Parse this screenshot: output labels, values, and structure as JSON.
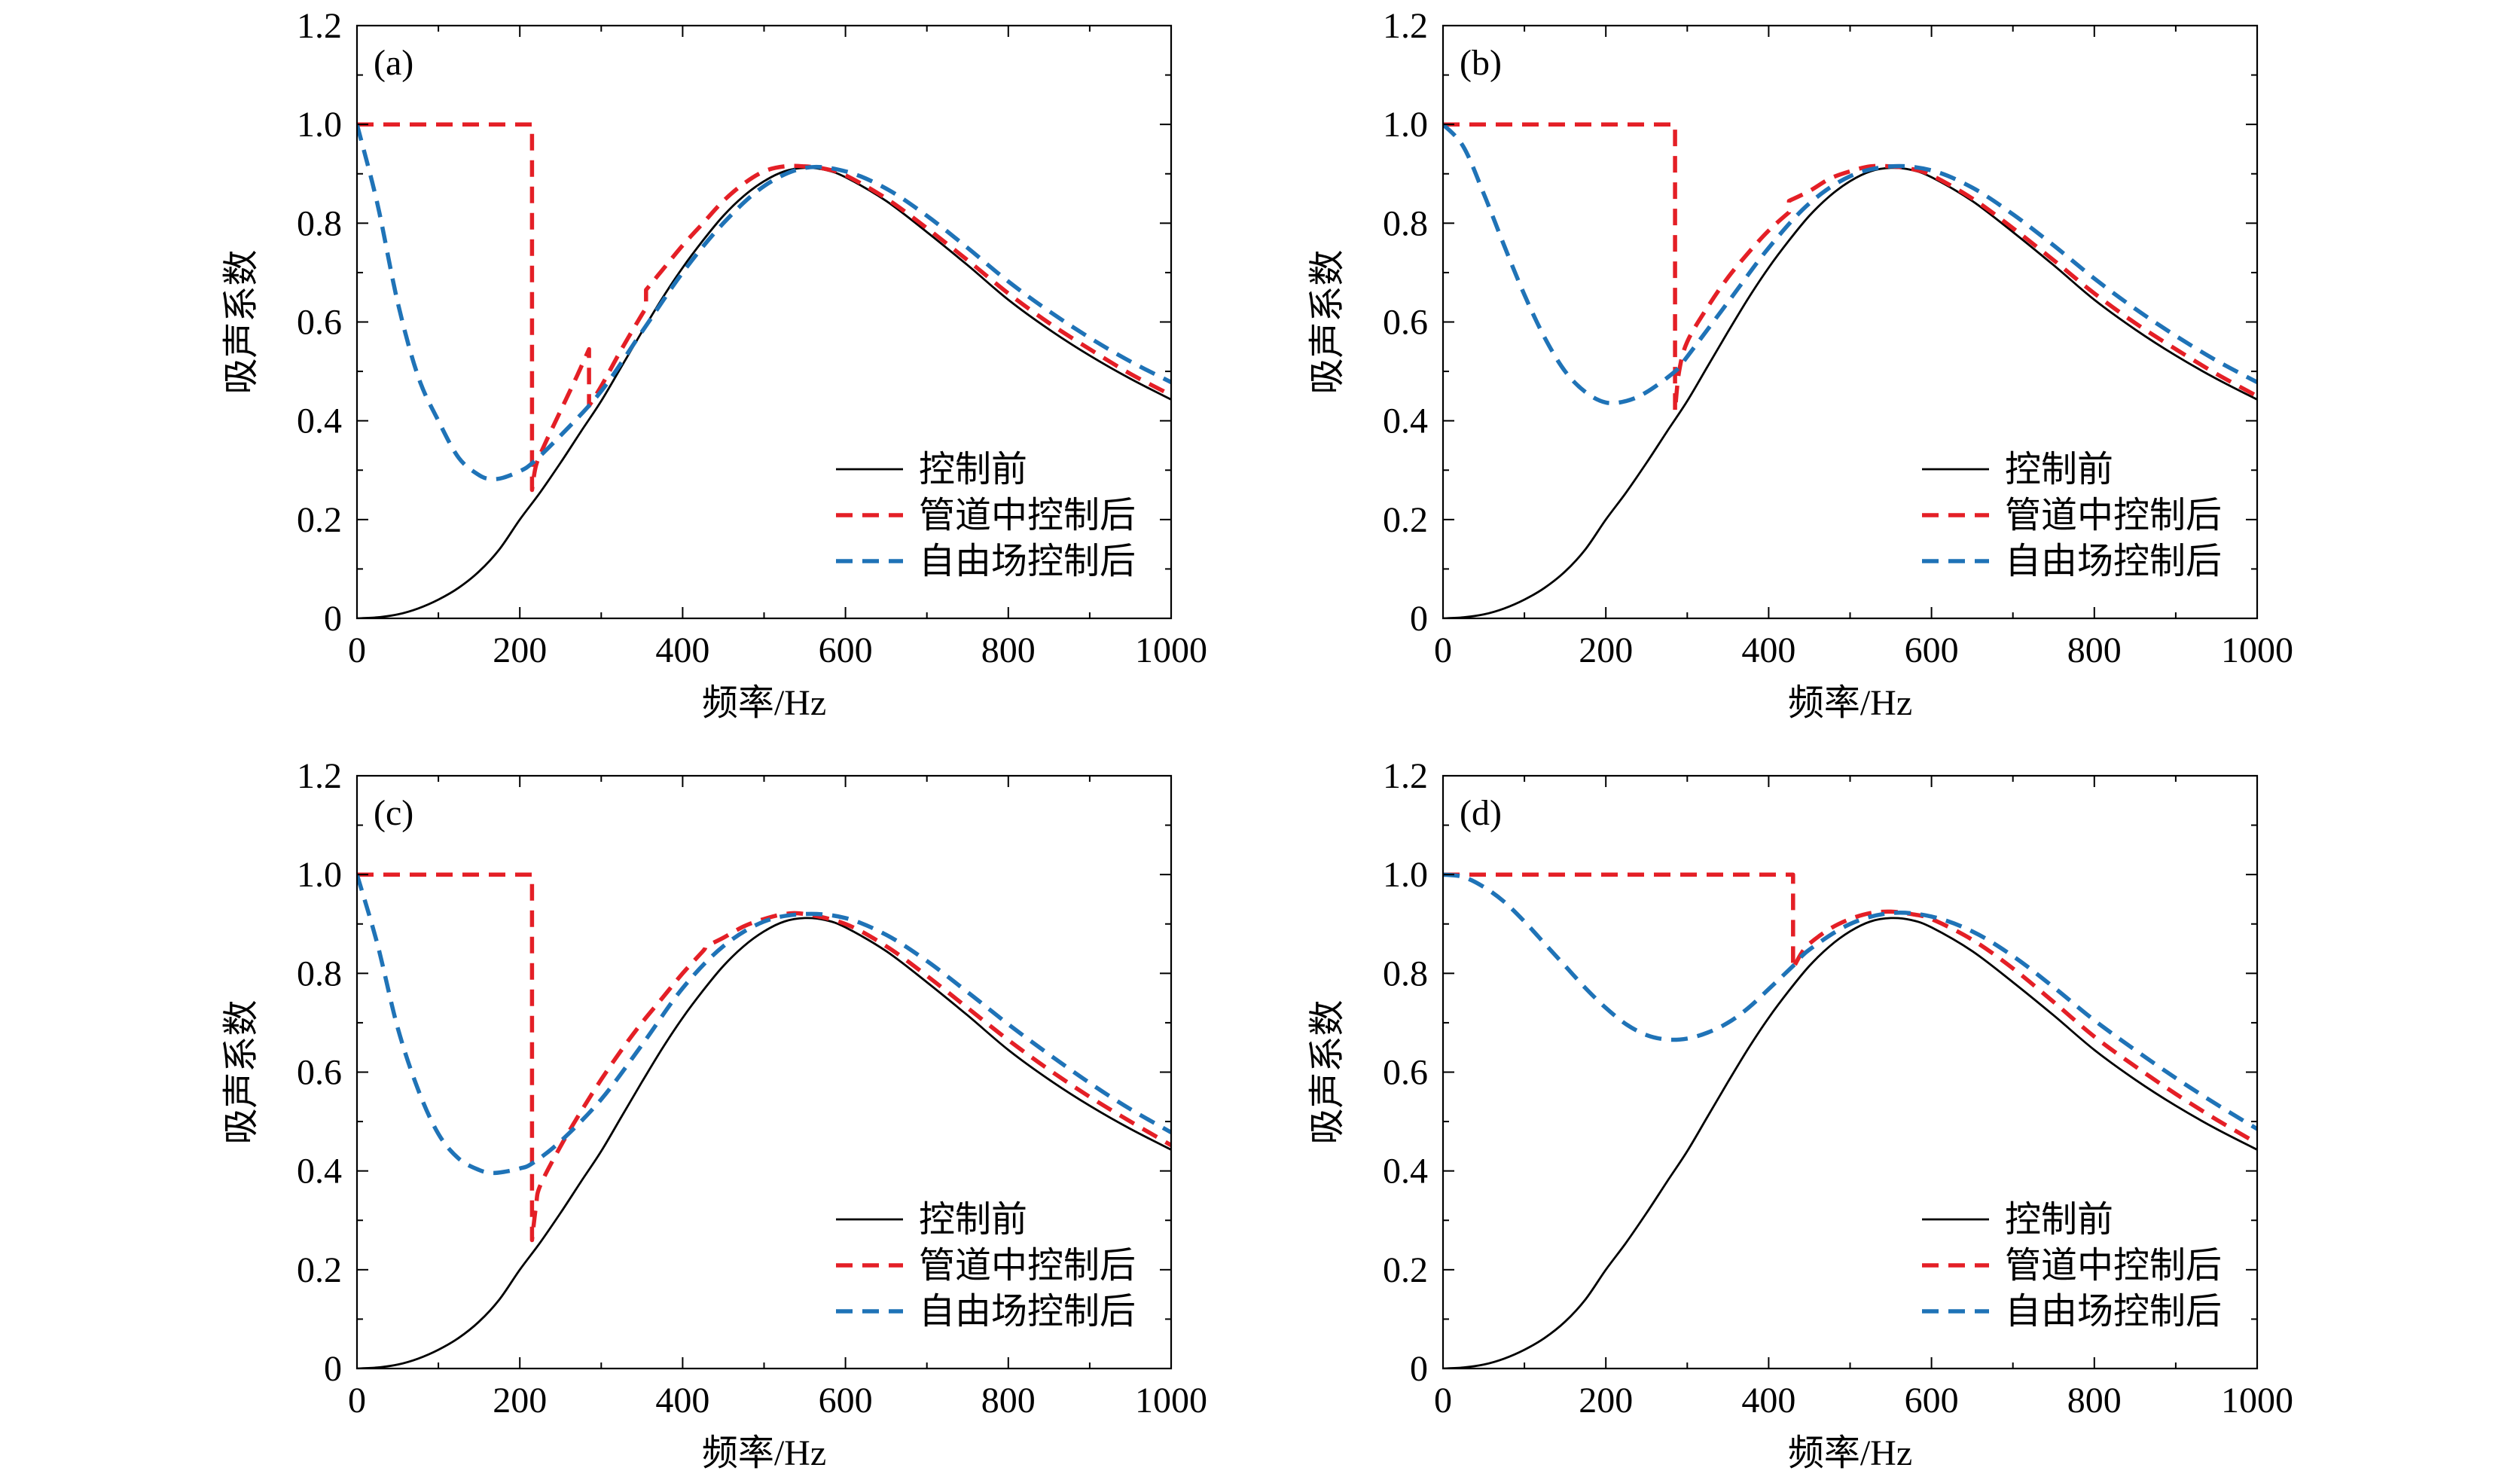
{
  "chart_data": [
    {
      "type": "line",
      "panel_label": "(a)",
      "xlabel": "频率/Hz",
      "ylabel": "吸声系数",
      "xlim": [
        0,
        1000
      ],
      "ylim": [
        0,
        1.2
      ],
      "xticks": [
        "0",
        "200",
        "400",
        "600",
        "800",
        "1000"
      ],
      "yticks": [
        "0",
        "0.2",
        "0.4",
        "0.6",
        "0.8",
        "1.0",
        "1.2"
      ],
      "grid": false,
      "legend_position": "bottom-right",
      "series": [
        {
          "name": "控制前",
          "color": "#000000",
          "dashed": false,
          "x": [
            0,
            25,
            50,
            75,
            100,
            125,
            150,
            175,
            200,
            225,
            250,
            275,
            300,
            325,
            350,
            375,
            400,
            425,
            450,
            475,
            500,
            525,
            550,
            575,
            600,
            650,
            700,
            750,
            800,
            850,
            900,
            950,
            1000
          ],
          "y": [
            0,
            0.002,
            0.008,
            0.02,
            0.038,
            0.062,
            0.095,
            0.14,
            0.2,
            0.255,
            0.315,
            0.378,
            0.44,
            0.51,
            0.58,
            0.648,
            0.71,
            0.765,
            0.815,
            0.855,
            0.885,
            0.905,
            0.912,
            0.908,
            0.893,
            0.845,
            0.782,
            0.715,
            0.645,
            0.585,
            0.532,
            0.485,
            0.443
          ]
        },
        {
          "name": "管道中控制后",
          "color": "#e41f26",
          "dashed": true,
          "x": [
            0,
            215,
            215,
            220,
            230,
            250,
            270,
            285,
            285,
            300,
            325,
            350,
            355,
            355,
            375,
            400,
            425,
            450,
            475,
            500,
            525,
            550,
            575,
            600,
            650,
            700,
            750,
            800,
            850,
            900,
            950,
            1000
          ],
          "y": [
            1.0,
            1.0,
            0.26,
            0.31,
            0.35,
            0.42,
            0.49,
            0.545,
            0.43,
            0.47,
            0.545,
            0.615,
            0.628,
            0.665,
            0.705,
            0.755,
            0.8,
            0.845,
            0.88,
            0.905,
            0.915,
            0.915,
            0.91,
            0.897,
            0.85,
            0.79,
            0.725,
            0.658,
            0.598,
            0.545,
            0.495,
            0.452
          ]
        },
        {
          "name": "自由场控制后",
          "color": "#1f73b7",
          "dashed": true,
          "x": [
            0,
            25,
            50,
            75,
            100,
            125,
            150,
            165,
            180,
            200,
            215,
            250,
            300,
            350,
            400,
            450,
            500,
            550,
            600,
            650,
            700,
            750,
            800,
            850,
            900,
            950,
            1000
          ],
          "y": [
            1.0,
            0.84,
            0.64,
            0.49,
            0.4,
            0.325,
            0.29,
            0.282,
            0.285,
            0.298,
            0.314,
            0.37,
            0.46,
            0.58,
            0.7,
            0.8,
            0.875,
            0.912,
            0.905,
            0.87,
            0.815,
            0.75,
            0.682,
            0.622,
            0.568,
            0.52,
            0.478
          ]
        }
      ]
    },
    {
      "type": "line",
      "panel_label": "(b)",
      "xlabel": "频率/Hz",
      "ylabel": "吸声系数",
      "xlim": [
        0,
        1000
      ],
      "ylim": [
        0,
        1.2
      ],
      "xticks": [
        "0",
        "200",
        "400",
        "600",
        "800",
        "1000"
      ],
      "yticks": [
        "0",
        "0.2",
        "0.4",
        "0.6",
        "0.8",
        "1.0",
        "1.2"
      ],
      "grid": false,
      "legend_position": "bottom-right",
      "series": [
        {
          "name": "控制前",
          "color": "#000000",
          "dashed": false,
          "x": [
            0,
            25,
            50,
            75,
            100,
            125,
            150,
            175,
            200,
            225,
            250,
            275,
            300,
            325,
            350,
            375,
            400,
            425,
            450,
            475,
            500,
            525,
            550,
            575,
            600,
            650,
            700,
            750,
            800,
            850,
            900,
            950,
            1000
          ],
          "y": [
            0,
            0.002,
            0.008,
            0.02,
            0.038,
            0.062,
            0.095,
            0.14,
            0.2,
            0.255,
            0.315,
            0.378,
            0.44,
            0.51,
            0.58,
            0.648,
            0.71,
            0.765,
            0.815,
            0.855,
            0.885,
            0.905,
            0.912,
            0.908,
            0.893,
            0.845,
            0.782,
            0.715,
            0.645,
            0.585,
            0.532,
            0.485,
            0.443
          ]
        },
        {
          "name": "管道中控制后",
          "color": "#e41f26",
          "dashed": true,
          "x": [
            0,
            285,
            285,
            290,
            300,
            325,
            350,
            375,
            400,
            425,
            425,
            450,
            475,
            500,
            525,
            550,
            575,
            600,
            650,
            700,
            750,
            800,
            850,
            900,
            950,
            1000
          ],
          "y": [
            1.0,
            1.0,
            0.42,
            0.5,
            0.56,
            0.63,
            0.69,
            0.74,
            0.785,
            0.822,
            0.845,
            0.865,
            0.89,
            0.905,
            0.915,
            0.915,
            0.91,
            0.897,
            0.85,
            0.79,
            0.725,
            0.658,
            0.598,
            0.545,
            0.495,
            0.45
          ]
        },
        {
          "name": "自由场控制后",
          "color": "#1f73b7",
          "dashed": true,
          "x": [
            0,
            25,
            50,
            75,
            100,
            125,
            150,
            175,
            200,
            225,
            250,
            285,
            300,
            350,
            400,
            450,
            500,
            550,
            600,
            650,
            700,
            750,
            800,
            850,
            900,
            950,
            1000
          ],
          "y": [
            1.0,
            0.955,
            0.86,
            0.755,
            0.655,
            0.568,
            0.5,
            0.458,
            0.437,
            0.44,
            0.458,
            0.5,
            0.53,
            0.64,
            0.75,
            0.84,
            0.895,
            0.915,
            0.907,
            0.872,
            0.818,
            0.755,
            0.688,
            0.627,
            0.572,
            0.522,
            0.478
          ]
        }
      ]
    },
    {
      "type": "line",
      "panel_label": "(c)",
      "xlabel": "频率/Hz",
      "ylabel": "吸声系数",
      "xlim": [
        0,
        1000
      ],
      "ylim": [
        0,
        1.2
      ],
      "xticks": [
        "0",
        "200",
        "400",
        "600",
        "800",
        "1000"
      ],
      "yticks": [
        "0",
        "0.2",
        "0.4",
        "0.6",
        "0.8",
        "1.0",
        "1.2"
      ],
      "grid": false,
      "legend_position": "bottom-right",
      "series": [
        {
          "name": "控制前",
          "color": "#000000",
          "dashed": false,
          "x": [
            0,
            25,
            50,
            75,
            100,
            125,
            150,
            175,
            200,
            225,
            250,
            275,
            300,
            325,
            350,
            375,
            400,
            425,
            450,
            475,
            500,
            525,
            550,
            575,
            600,
            650,
            700,
            750,
            800,
            850,
            900,
            950,
            1000
          ],
          "y": [
            0,
            0.002,
            0.008,
            0.02,
            0.038,
            0.062,
            0.095,
            0.14,
            0.2,
            0.255,
            0.315,
            0.378,
            0.44,
            0.51,
            0.58,
            0.648,
            0.71,
            0.765,
            0.815,
            0.855,
            0.885,
            0.905,
            0.912,
            0.908,
            0.893,
            0.845,
            0.782,
            0.715,
            0.645,
            0.585,
            0.532,
            0.485,
            0.443
          ]
        },
        {
          "name": "管道中控制后",
          "color": "#e41f26",
          "dashed": true,
          "x": [
            0,
            215,
            215,
            220,
            225,
            250,
            275,
            300,
            325,
            350,
            375,
            400,
            425,
            430,
            450,
            475,
            500,
            525,
            550,
            600,
            650,
            700,
            750,
            800,
            850,
            900,
            950,
            1000
          ],
          "y": [
            1.0,
            1.0,
            0.26,
            0.33,
            0.37,
            0.45,
            0.52,
            0.585,
            0.645,
            0.7,
            0.75,
            0.8,
            0.845,
            0.855,
            0.872,
            0.895,
            0.91,
            0.92,
            0.92,
            0.9,
            0.855,
            0.795,
            0.73,
            0.665,
            0.605,
            0.55,
            0.5,
            0.452
          ]
        },
        {
          "name": "自由场控制后",
          "color": "#1f73b7",
          "dashed": true,
          "x": [
            0,
            25,
            50,
            75,
            100,
            125,
            150,
            165,
            180,
            200,
            215,
            250,
            300,
            350,
            400,
            450,
            500,
            550,
            600,
            650,
            700,
            750,
            800,
            850,
            900,
            950,
            1000
          ],
          "y": [
            1.0,
            0.86,
            0.69,
            0.565,
            0.475,
            0.425,
            0.402,
            0.396,
            0.398,
            0.405,
            0.415,
            0.46,
            0.545,
            0.655,
            0.77,
            0.855,
            0.905,
            0.92,
            0.912,
            0.878,
            0.825,
            0.762,
            0.697,
            0.636,
            0.578,
            0.525,
            0.478
          ]
        }
      ]
    },
    {
      "type": "line",
      "panel_label": "(d)",
      "xlabel": "频率/Hz",
      "ylabel": "吸声系数",
      "xlim": [
        0,
        1000
      ],
      "ylim": [
        0,
        1.2
      ],
      "xticks": [
        "0",
        "200",
        "400",
        "600",
        "800",
        "1000"
      ],
      "yticks": [
        "0",
        "0.2",
        "0.4",
        "0.6",
        "0.8",
        "1.0",
        "1.2"
      ],
      "grid": false,
      "legend_position": "bottom-right",
      "series": [
        {
          "name": "控制前",
          "color": "#000000",
          "dashed": false,
          "x": [
            0,
            25,
            50,
            75,
            100,
            125,
            150,
            175,
            200,
            225,
            250,
            275,
            300,
            325,
            350,
            375,
            400,
            425,
            450,
            475,
            500,
            525,
            550,
            575,
            600,
            650,
            700,
            750,
            800,
            850,
            900,
            950,
            1000
          ],
          "y": [
            0,
            0.002,
            0.008,
            0.02,
            0.038,
            0.062,
            0.095,
            0.14,
            0.2,
            0.255,
            0.315,
            0.378,
            0.44,
            0.51,
            0.58,
            0.648,
            0.71,
            0.765,
            0.815,
            0.855,
            0.885,
            0.905,
            0.912,
            0.908,
            0.893,
            0.845,
            0.782,
            0.715,
            0.645,
            0.585,
            0.532,
            0.485,
            0.443
          ]
        },
        {
          "name": "管道中控制后",
          "color": "#e41f26",
          "dashed": true,
          "x": [
            0,
            430,
            430,
            440,
            450,
            475,
            500,
            525,
            550,
            575,
            600,
            650,
            700,
            750,
            800,
            850,
            900,
            950,
            1000
          ],
          "y": [
            1.0,
            1.0,
            0.81,
            0.84,
            0.86,
            0.89,
            0.91,
            0.922,
            0.925,
            0.92,
            0.91,
            0.868,
            0.81,
            0.742,
            0.672,
            0.612,
            0.556,
            0.504,
            0.456
          ]
        },
        {
          "name": "自由场控制后",
          "color": "#1f73b7",
          "dashed": true,
          "x": [
            0,
            25,
            50,
            75,
            100,
            125,
            150,
            175,
            200,
            225,
            250,
            275,
            300,
            325,
            350,
            375,
            400,
            430,
            450,
            500,
            550,
            600,
            650,
            700,
            750,
            800,
            850,
            900,
            950,
            1000
          ],
          "y": [
            1.0,
            0.995,
            0.975,
            0.945,
            0.905,
            0.86,
            0.815,
            0.77,
            0.73,
            0.697,
            0.675,
            0.666,
            0.668,
            0.68,
            0.7,
            0.73,
            0.768,
            0.815,
            0.848,
            0.9,
            0.922,
            0.915,
            0.885,
            0.835,
            0.772,
            0.705,
            0.645,
            0.588,
            0.535,
            0.485
          ]
        }
      ]
    }
  ]
}
